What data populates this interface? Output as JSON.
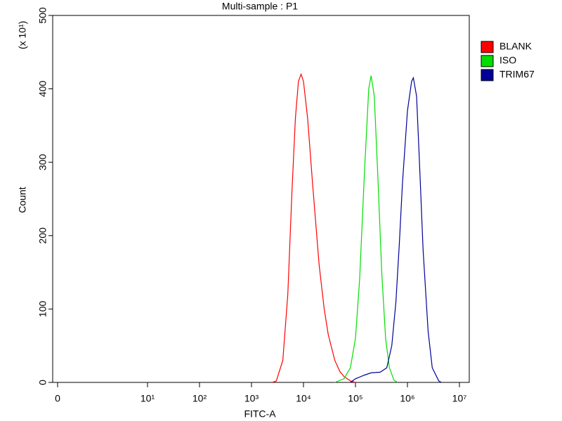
{
  "chart_data": {
    "type": "line",
    "title": "Multi-sample : P1",
    "x_label": "FITC-A",
    "y_label": "Count",
    "y_unit": "(x 10¹)",
    "xscale": "symlog",
    "linthresh": 10,
    "linscale": 1.73,
    "xlim": [
      0,
      10000000
    ],
    "ylim": [
      0,
      500
    ],
    "xticks": [
      0,
      {
        "value": 10,
        "label": "10¹"
      },
      {
        "value": 100,
        "label": "10²"
      },
      {
        "value": 1000,
        "label": "10³"
      },
      {
        "value": 10000,
        "label": "10⁴"
      },
      {
        "value": 100000,
        "label": "10⁵"
      },
      {
        "value": 1000000,
        "label": "10⁶"
      },
      {
        "value": 10000000,
        "label": "10⁷"
      }
    ],
    "yticks": [
      0,
      100,
      200,
      300,
      400,
      500
    ],
    "legend": "right",
    "series": [
      {
        "name": "BLANK",
        "color": "#ff0000",
        "x": [
          2500,
          3000,
          4000,
          5000,
          6000,
          7000,
          8000,
          9000,
          10000,
          12000,
          15000,
          20000,
          25000,
          30000,
          40000,
          50000,
          60000,
          80000,
          100000
        ],
        "values": [
          0,
          2,
          30,
          120,
          260,
          360,
          410,
          420,
          410,
          360,
          270,
          160,
          100,
          65,
          30,
          15,
          8,
          2,
          0
        ]
      },
      {
        "name": "ISO",
        "color": "#00dd00",
        "x": [
          40000,
          60000,
          80000,
          100000,
          120000,
          150000,
          180000,
          200000,
          230000,
          270000,
          320000,
          380000,
          450000,
          550000,
          650000
        ],
        "values": [
          0,
          5,
          20,
          60,
          140,
          290,
          400,
          418,
          390,
          280,
          150,
          60,
          20,
          3,
          0
        ]
      },
      {
        "name": "TRIM67",
        "color": "#000099",
        "x": [
          80000,
          100000,
          150000,
          200000,
          300000,
          400000,
          500000,
          600000,
          700000,
          800000,
          1000000,
          1200000,
          1300000,
          1500000,
          1700000,
          2000000,
          2500000,
          3000000,
          4000000,
          4500000
        ],
        "values": [
          0,
          5,
          10,
          13,
          14,
          20,
          50,
          110,
          190,
          270,
          370,
          410,
          415,
          390,
          300,
          180,
          70,
          20,
          2,
          0
        ]
      }
    ]
  }
}
